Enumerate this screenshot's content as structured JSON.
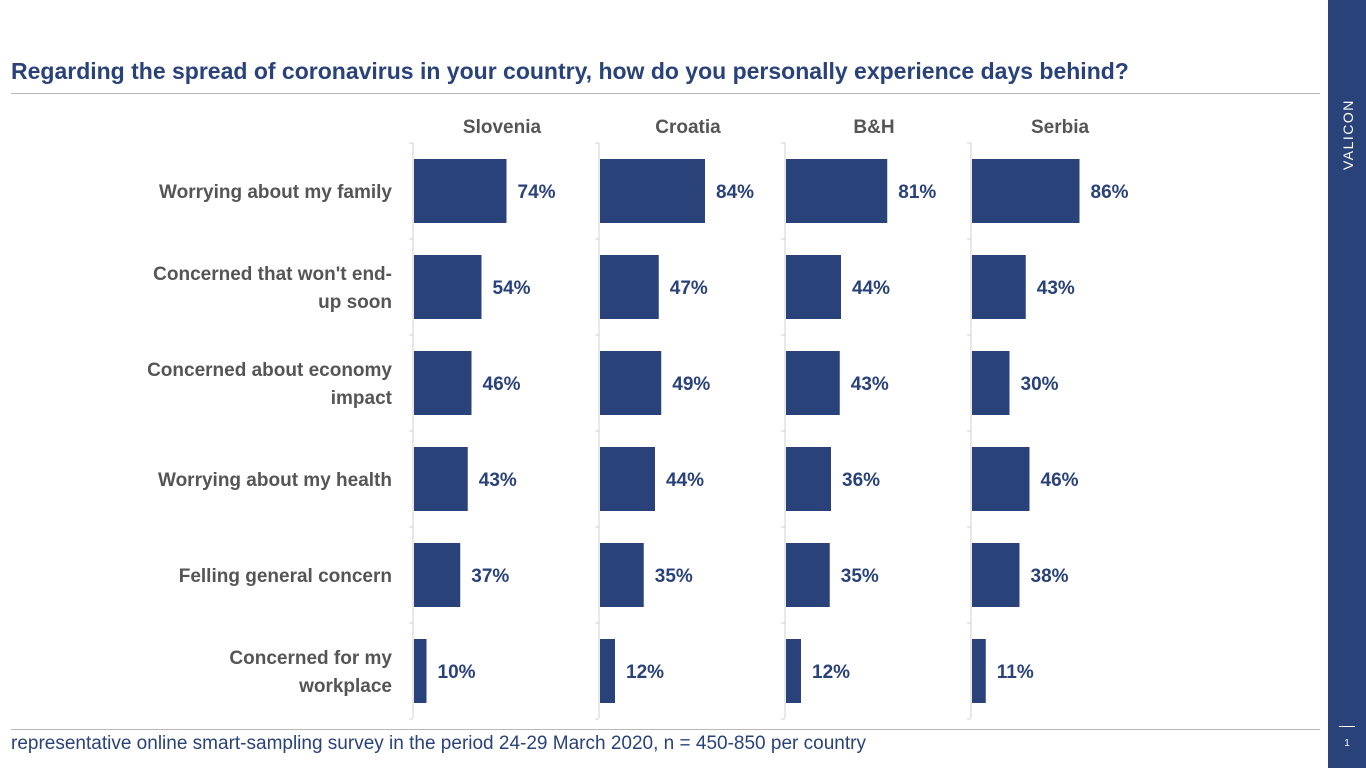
{
  "title": "Regarding the spread of coronavirus in your country, how do you personally experience days behind?",
  "footnote": "representative online smart-sampling survey in the period 24-29 March 2020, n = 450-850 per country",
  "sidebar": {
    "brand": "VALICON",
    "page_number": "1"
  },
  "colors": {
    "bar": "#29427a",
    "accent": "#29427a",
    "label_text": "#555555"
  },
  "chart_data": {
    "type": "bar",
    "orientation": "horizontal",
    "categories": [
      [
        "Worrying about my family"
      ],
      [
        "Concerned that won't end-",
        "up soon"
      ],
      [
        "Concerned about economy",
        "impact"
      ],
      [
        "Worrying about my health"
      ],
      [
        "Felling general concern"
      ],
      [
        "Concerned for my",
        "workplace"
      ]
    ],
    "series": [
      {
        "name": "Slovenia",
        "values": [
          74,
          54,
          46,
          43,
          37,
          10
        ],
        "labels": [
          "74%",
          "54%",
          "46%",
          "43%",
          "37%",
          "10%"
        ]
      },
      {
        "name": "Croatia",
        "values": [
          84,
          47,
          49,
          44,
          35,
          12
        ],
        "labels": [
          "84%",
          "47%",
          "49%",
          "44%",
          "35%",
          "12%"
        ]
      },
      {
        "name": "B&H",
        "values": [
          81,
          44,
          43,
          36,
          35,
          12
        ],
        "labels": [
          "81%",
          "44%",
          "43%",
          "36%",
          "35%",
          "12%"
        ]
      },
      {
        "name": "Serbia",
        "values": [
          86,
          43,
          30,
          46,
          38,
          11
        ],
        "labels": [
          "86%",
          "43%",
          "30%",
          "46%",
          "38%",
          "11%"
        ]
      }
    ],
    "xlim": [
      0,
      100
    ],
    "unit": "%",
    "grid": false,
    "legend": "none"
  }
}
